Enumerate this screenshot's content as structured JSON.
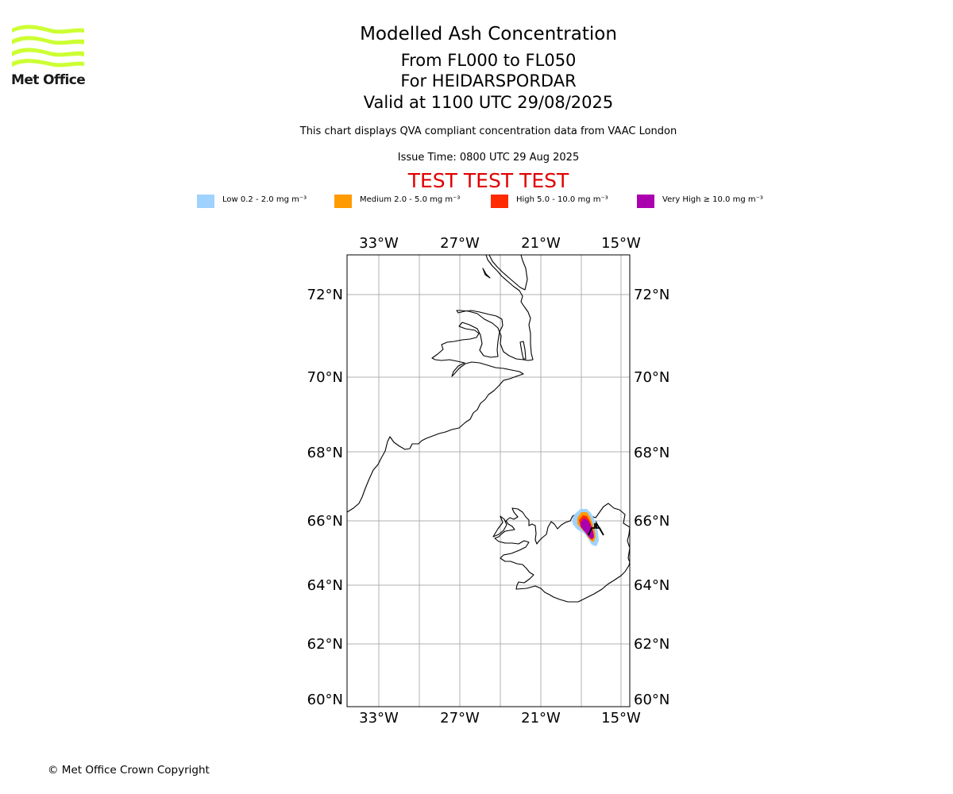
{
  "logo": {
    "brand": "Met Office",
    "color": "#ccff33"
  },
  "header": {
    "title": "Modelled Ash Concentration",
    "levels": "From FL000 to FL050",
    "location": "For HEIDARSPORDAR",
    "valid": "Valid at 1100 UTC 29/08/2025",
    "subtitle": "This chart displays QVA compliant concentration data from VAAC London",
    "issue_time": "Issue Time: 0800 UTC 29 Aug 2025",
    "test_banner": "TEST TEST TEST"
  },
  "legend": [
    {
      "label": "Low 0.2 - 2.0 mg m⁻³",
      "color": "#a0d2ff"
    },
    {
      "label": "Medium 2.0 - 5.0 mg m⁻³",
      "color": "#ff9a00"
    },
    {
      "label": "High 5.0 - 10.0 mg m⁻³",
      "color": "#ff2a00"
    },
    {
      "label": "Very High  ≥  10.0 mg m⁻³",
      "color": "#aa00b0"
    }
  ],
  "map": {
    "lon_ticks": [
      "33°W",
      "27°W",
      "21°W",
      "15°W"
    ],
    "lat_ticks": [
      "72°N",
      "70°N",
      "68°N",
      "66°N",
      "64°N",
      "62°N",
      "60°N"
    ],
    "volcano_icon": "volcano-icon"
  },
  "footer": {
    "copyright": "© Met Office Crown Copyright"
  }
}
